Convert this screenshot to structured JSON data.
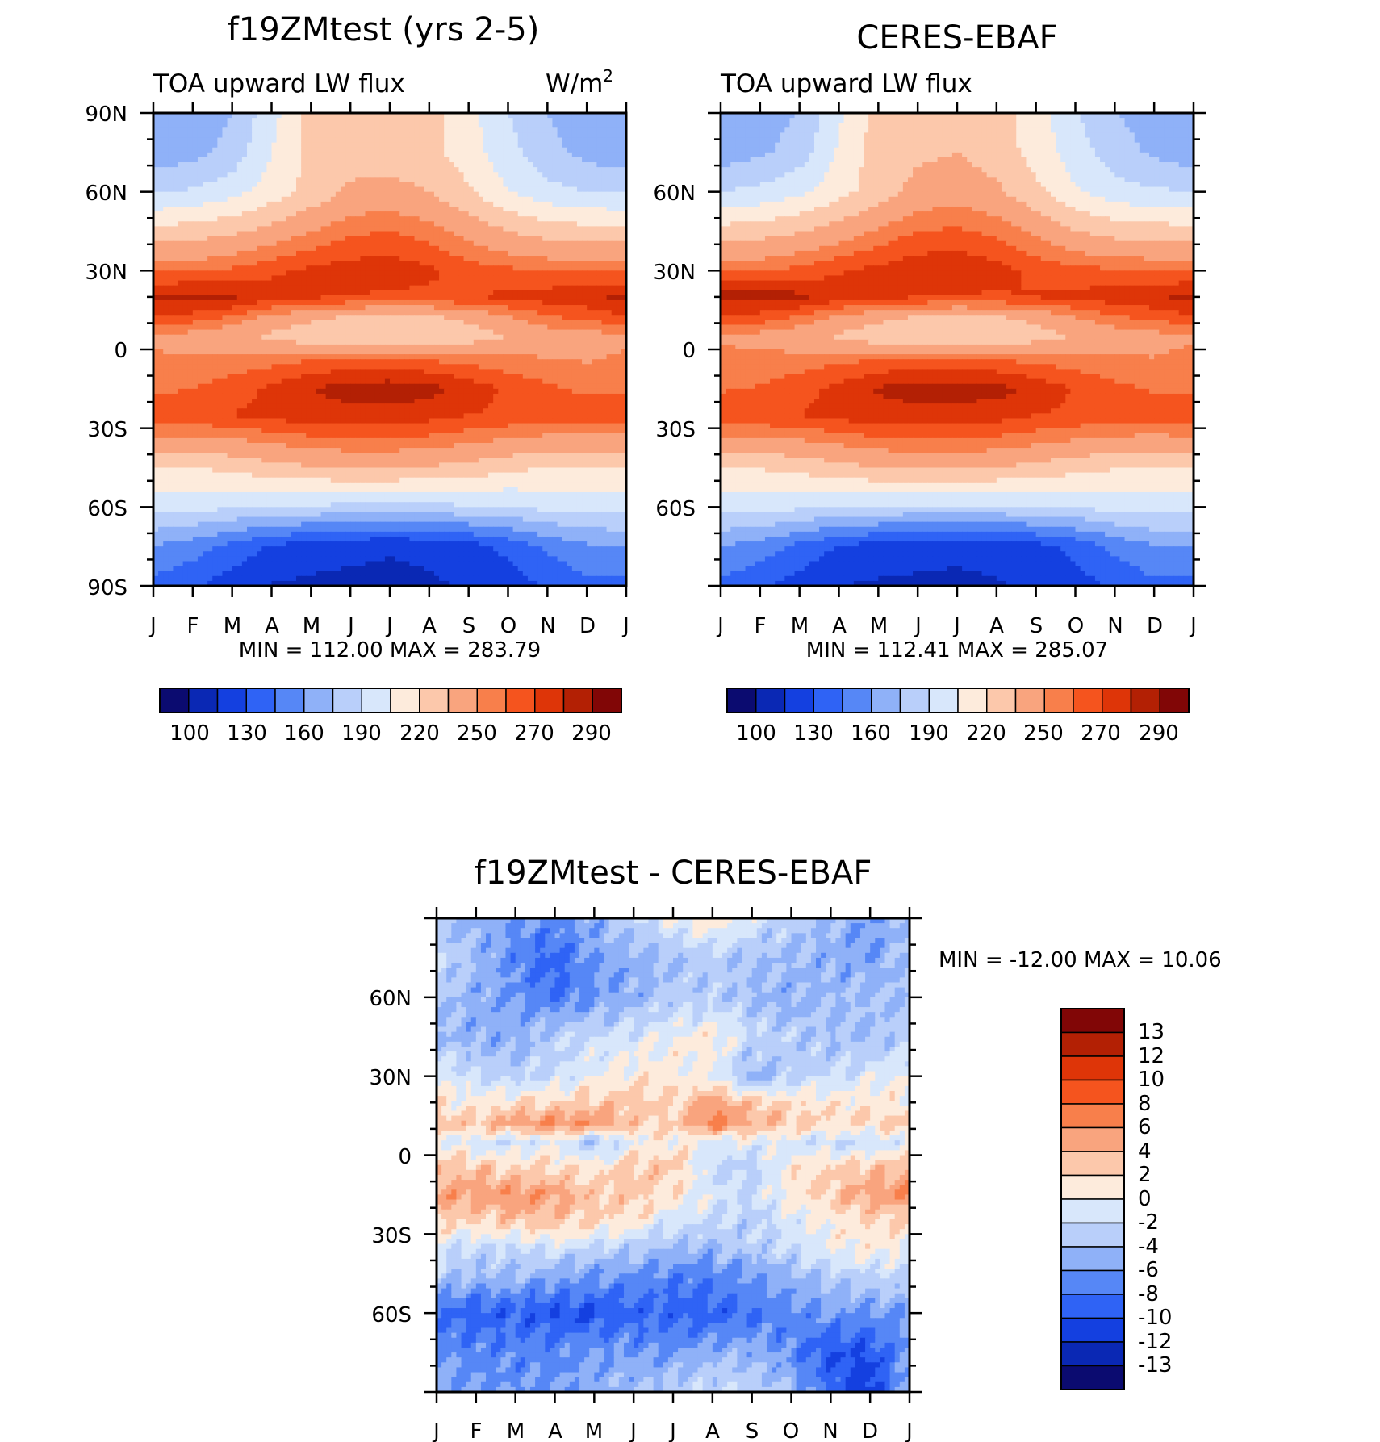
{
  "chart_data": [
    {
      "type": "heatmap",
      "title": "f19ZMtest (yrs 2-5)",
      "subtitle_left": "TOA upward LW flux",
      "subtitle_right_base": "W/m",
      "subtitle_right_sup": "2",
      "x_labels": [
        "J",
        "F",
        "M",
        "A",
        "M",
        "J",
        "J",
        "A",
        "S",
        "O",
        "N",
        "D",
        "J"
      ],
      "y_labels": [
        "90N",
        "60N",
        "30N",
        "0",
        "30S",
        "60S",
        "90S"
      ],
      "xlim": [
        0,
        12
      ],
      "ylim": [
        -90,
        90
      ],
      "stats": "MIN = 112.00 MAX = 283.79",
      "levels": [
        "100",
        "130",
        "160",
        "190",
        "220",
        "250",
        "270",
        "290"
      ],
      "colors": [
        "#0b0b70",
        "#0a28b4",
        "#1440e0",
        "#2f63f5",
        "#5687f6",
        "#8fb1f8",
        "#b9cffa",
        "#d8e7fb",
        "#fdebdc",
        "#fcc8ab",
        "#f9a47e",
        "#f87f4b",
        "#f5541e",
        "#de3508",
        "#b32004",
        "#810606"
      ],
      "field": {
        "lat": [
          90,
          75,
          60,
          45,
          30,
          20,
          12,
          5,
          -5,
          -15,
          -25,
          -35,
          -45,
          -60,
          -75,
          -90
        ],
        "rows": [
          [
            160,
            165,
            175,
            200,
            225,
            225,
            225,
            225,
            210,
            190,
            175,
            165,
            160
          ],
          [
            165,
            170,
            180,
            205,
            225,
            228,
            228,
            225,
            212,
            195,
            180,
            170,
            165
          ],
          [
            188,
            192,
            200,
            212,
            225,
            238,
            240,
            235,
            222,
            205,
            195,
            190,
            188
          ],
          [
            225,
            228,
            232,
            240,
            250,
            258,
            260,
            255,
            245,
            235,
            228,
            226,
            225
          ],
          [
            258,
            258,
            262,
            268,
            272,
            275,
            276,
            272,
            265,
            262,
            260,
            259,
            258
          ],
          [
            283,
            284,
            282,
            275,
            272,
            270,
            268,
            268,
            270,
            272,
            275,
            278,
            283
          ],
          [
            268,
            265,
            258,
            245,
            238,
            232,
            230,
            232,
            238,
            248,
            258,
            262,
            268
          ],
          [
            248,
            245,
            240,
            232,
            225,
            222,
            220,
            222,
            228,
            235,
            242,
            245,
            248
          ],
          [
            252,
            252,
            255,
            258,
            262,
            265,
            265,
            262,
            258,
            255,
            252,
            250,
            252
          ],
          [
            258,
            260,
            265,
            272,
            280,
            285,
            286,
            284,
            276,
            268,
            262,
            258,
            258
          ],
          [
            268,
            268,
            270,
            274,
            276,
            276,
            276,
            274,
            270,
            268,
            266,
            266,
            268
          ],
          [
            245,
            246,
            248,
            252,
            256,
            258,
            258,
            256,
            252,
            248,
            245,
            244,
            245
          ],
          [
            218,
            220,
            224,
            230,
            234,
            236,
            236,
            234,
            230,
            224,
            220,
            218,
            218
          ],
          [
            195,
            195,
            192,
            190,
            188,
            186,
            186,
            186,
            188,
            190,
            194,
            196,
            195
          ],
          [
            160,
            152,
            140,
            128,
            122,
            118,
            116,
            118,
            124,
            134,
            148,
            158,
            160
          ],
          [
            140,
            132,
            122,
            114,
            112,
            112,
            112,
            113,
            116,
            122,
            132,
            140,
            140
          ]
        ]
      }
    },
    {
      "type": "heatmap",
      "title": "CERES-EBAF",
      "subtitle_left": "TOA upward LW flux",
      "x_labels": [
        "J",
        "F",
        "M",
        "A",
        "M",
        "J",
        "J",
        "A",
        "S",
        "O",
        "N",
        "D",
        "J"
      ],
      "y_labels": [
        "60N",
        "30N",
        "0",
        "30S",
        "60S"
      ],
      "xlim": [
        0,
        12
      ],
      "ylim": [
        -90,
        90
      ],
      "stats": "MIN = 112.41 MAX = 285.07",
      "levels": [
        "100",
        "130",
        "160",
        "190",
        "220",
        "250",
        "270",
        "290"
      ],
      "colors": [
        "#0b0b70",
        "#0a28b4",
        "#1440e0",
        "#2f63f5",
        "#5687f6",
        "#8fb1f8",
        "#b9cffa",
        "#d8e7fb",
        "#fdebdc",
        "#fcc8ab",
        "#f9a47e",
        "#f87f4b",
        "#f5541e",
        "#de3508",
        "#b32004",
        "#810606"
      ],
      "field": {
        "lat": [
          90,
          75,
          60,
          45,
          30,
          20,
          12,
          5,
          -5,
          -15,
          -25,
          -35,
          -45,
          -60,
          -75,
          -90
        ],
        "rows": [
          [
            160,
            166,
            176,
            202,
            226,
            228,
            228,
            226,
            212,
            192,
            176,
            166,
            160
          ],
          [
            166,
            172,
            182,
            207,
            228,
            232,
            235,
            228,
            214,
            197,
            182,
            172,
            166
          ],
          [
            190,
            194,
            202,
            214,
            228,
            240,
            244,
            238,
            224,
            207,
            196,
            192,
            190
          ],
          [
            226,
            229,
            234,
            242,
            252,
            260,
            262,
            257,
            247,
            236,
            229,
            227,
            226
          ],
          [
            259,
            259,
            263,
            269,
            273,
            277,
            278,
            274,
            267,
            263,
            261,
            260,
            259
          ],
          [
            284,
            285,
            283,
            276,
            273,
            271,
            269,
            269,
            271,
            273,
            276,
            279,
            284
          ],
          [
            268,
            265,
            258,
            246,
            239,
            233,
            231,
            233,
            239,
            249,
            258,
            262,
            268
          ],
          [
            249,
            246,
            241,
            233,
            226,
            223,
            221,
            223,
            229,
            236,
            243,
            246,
            249
          ],
          [
            253,
            253,
            256,
            259,
            263,
            266,
            266,
            263,
            259,
            256,
            253,
            251,
            253
          ],
          [
            259,
            261,
            266,
            273,
            281,
            285,
            285,
            284,
            277,
            269,
            263,
            259,
            259
          ],
          [
            268,
            268,
            270,
            274,
            276,
            276,
            276,
            274,
            270,
            268,
            266,
            266,
            268
          ],
          [
            246,
            247,
            249,
            253,
            257,
            259,
            259,
            257,
            253,
            249,
            246,
            245,
            246
          ],
          [
            219,
            221,
            225,
            231,
            235,
            237,
            237,
            235,
            231,
            225,
            221,
            219,
            219
          ],
          [
            196,
            196,
            193,
            191,
            189,
            187,
            187,
            187,
            189,
            191,
            195,
            197,
            196
          ],
          [
            161,
            153,
            141,
            129,
            123,
            119,
            117,
            119,
            125,
            135,
            149,
            159,
            161
          ],
          [
            141,
            133,
            123,
            115,
            113,
            113,
            113,
            114,
            117,
            123,
            133,
            141,
            141
          ]
        ]
      }
    },
    {
      "type": "heatmap",
      "title": "f19ZMtest - CERES-EBAF",
      "x_labels": [
        "J",
        "F",
        "M",
        "A",
        "M",
        "J",
        "J",
        "A",
        "S",
        "O",
        "N",
        "D",
        "J"
      ],
      "y_labels": [
        "60N",
        "30N",
        "0",
        "30S",
        "60S"
      ],
      "xlim": [
        0,
        12
      ],
      "ylim": [
        -90,
        90
      ],
      "stats": "MIN = -12.00 MAX = 10.06",
      "levels": [
        "13",
        "12",
        "10",
        "8",
        "6",
        "4",
        "2",
        "0",
        "-2",
        "-4",
        "-6",
        "-8",
        "-10",
        "-12",
        "-13"
      ],
      "colors": [
        "#810606",
        "#b32004",
        "#de3508",
        "#f5541e",
        "#f87f4b",
        "#f9a47e",
        "#fcc8ab",
        "#fdebdc",
        "#d8e7fb",
        "#b9cffa",
        "#8fb1f8",
        "#5687f6",
        "#2f63f5",
        "#1440e0",
        "#0a28b4",
        "#0b0b70"
      ],
      "field": {
        "lat": [
          90,
          75,
          60,
          45,
          30,
          20,
          12,
          5,
          -5,
          -15,
          -25,
          -35,
          -45,
          -60,
          -75,
          -90
        ],
        "rows": [
          [
            -4,
            -5,
            -6,
            -6,
            -5,
            -2,
            0,
            2,
            -1,
            -3,
            -4,
            -6,
            -4
          ],
          [
            -2,
            -4,
            -7,
            -9,
            -6,
            -5,
            -4,
            -3,
            -4,
            -4,
            -5,
            -6,
            -3
          ],
          [
            -3,
            -5,
            -6,
            -8,
            -6,
            -5,
            -3,
            -3,
            -4,
            -5,
            -4,
            -4,
            -4
          ],
          [
            -4,
            -5,
            -5,
            -3,
            -2,
            -1,
            0,
            1,
            -2,
            -3,
            -4,
            -4,
            -3
          ],
          [
            0,
            -2,
            -3,
            -2,
            0,
            1,
            1,
            0,
            -5,
            -3,
            -2,
            -1,
            0
          ],
          [
            1,
            1,
            2,
            2,
            3,
            3,
            2,
            5,
            3,
            2,
            1,
            1,
            1
          ],
          [
            3,
            3,
            5,
            6,
            6,
            3,
            2,
            7,
            4,
            3,
            2,
            2,
            3
          ],
          [
            0,
            -1,
            -2,
            0,
            -4,
            0,
            1,
            -1,
            0,
            -1,
            -2,
            -2,
            0
          ],
          [
            4,
            3,
            2,
            2,
            1,
            3,
            3,
            -2,
            -3,
            1,
            2,
            3,
            4
          ],
          [
            5,
            5,
            6,
            5,
            3,
            3,
            1,
            -1,
            -2,
            1,
            3,
            5,
            6
          ],
          [
            2,
            2,
            3,
            3,
            2,
            1,
            -1,
            -2,
            -3,
            -1,
            1,
            2,
            2
          ],
          [
            -1,
            -2,
            -2,
            -1,
            -2,
            -3,
            -4,
            -4,
            -3,
            -2,
            0,
            1,
            0
          ],
          [
            -3,
            -4,
            -4,
            -5,
            -6,
            -6,
            -7,
            -7,
            -6,
            -4,
            -3,
            -2,
            -2
          ],
          [
            -8,
            -9,
            -9,
            -10,
            -10,
            -9,
            -9,
            -9,
            -8,
            -7,
            -6,
            -6,
            -6
          ],
          [
            -6,
            -7,
            -7,
            -7,
            -6,
            -6,
            -6,
            -5,
            -5,
            -7,
            -10,
            -10,
            -6
          ],
          [
            -5,
            -6,
            -6,
            -6,
            -5,
            -4,
            -3,
            -2,
            -2,
            -4,
            -8,
            -12,
            -4
          ]
        ]
      }
    }
  ]
}
